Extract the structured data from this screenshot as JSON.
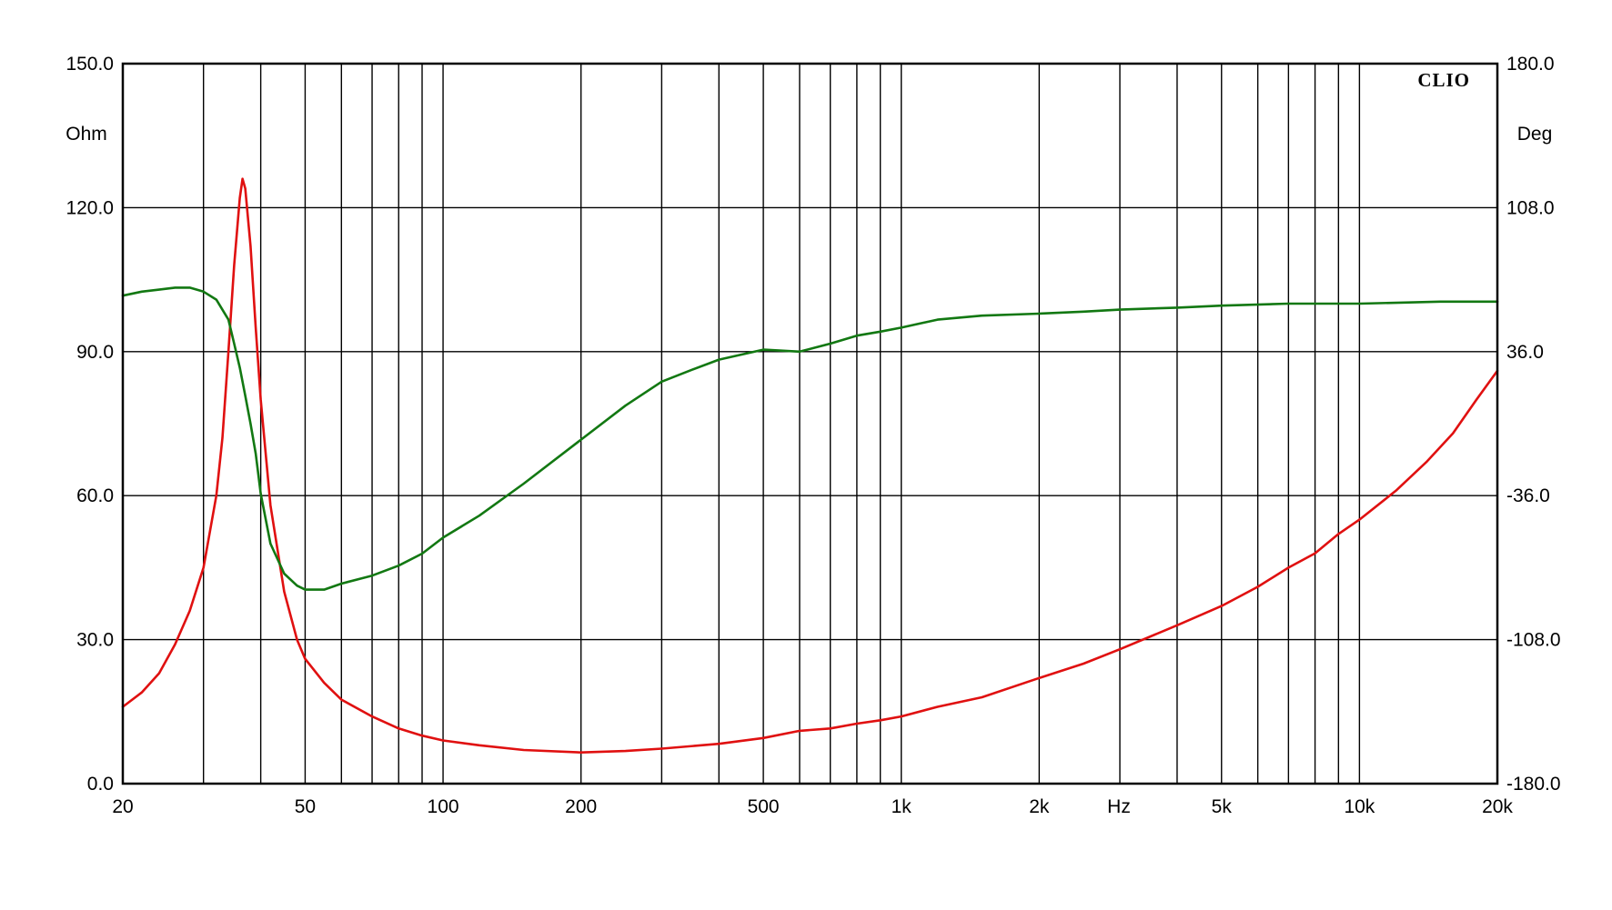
{
  "chart_data": {
    "type": "line",
    "brand": "CLIO",
    "left_unit": "Ohm",
    "right_unit": "Deg",
    "x_unit": "Hz",
    "x_scale": "log",
    "xlim": [
      20,
      20000
    ],
    "ylim_left": [
      0,
      150
    ],
    "ylim_right": [
      -180,
      180
    ],
    "grid": true,
    "colors": {
      "magnitude": "#e01010",
      "phase": "#127812",
      "grid": "#000000"
    },
    "x_ticks": [
      {
        "value": 20,
        "label": "20"
      },
      {
        "value": 50,
        "label": "50"
      },
      {
        "value": 100,
        "label": "100"
      },
      {
        "value": 200,
        "label": "200"
      },
      {
        "value": 500,
        "label": "500"
      },
      {
        "value": 1000,
        "label": "1k"
      },
      {
        "value": 2000,
        "label": "2k"
      },
      {
        "value": 5000,
        "label": "5k"
      },
      {
        "value": 10000,
        "label": "10k"
      },
      {
        "value": 20000,
        "label": "20k"
      }
    ],
    "x_gridlines": [
      20,
      30,
      40,
      50,
      60,
      70,
      80,
      90,
      100,
      200,
      300,
      400,
      500,
      600,
      700,
      800,
      900,
      1000,
      2000,
      3000,
      4000,
      5000,
      6000,
      7000,
      8000,
      9000,
      10000,
      20000
    ],
    "y_left_ticks": [
      {
        "value": 0,
        "label": "0.0"
      },
      {
        "value": 30,
        "label": "30.0"
      },
      {
        "value": 60,
        "label": "60.0"
      },
      {
        "value": 90,
        "label": "90.0"
      },
      {
        "value": 120,
        "label": "120.0"
      },
      {
        "value": 150,
        "label": "150.0"
      }
    ],
    "y_right_ticks": [
      {
        "value": -180,
        "label": "-180.0"
      },
      {
        "value": -108,
        "label": "-108.0"
      },
      {
        "value": -36,
        "label": "-36.0"
      },
      {
        "value": 36,
        "label": "36.0"
      },
      {
        "value": 108,
        "label": "108.0"
      },
      {
        "value": 180,
        "label": "180.0"
      }
    ],
    "series": [
      {
        "key": "magnitude",
        "axis": "left",
        "points": [
          [
            20,
            16
          ],
          [
            22,
            19
          ],
          [
            24,
            23
          ],
          [
            26,
            29
          ],
          [
            28,
            36
          ],
          [
            30,
            45
          ],
          [
            32,
            60
          ],
          [
            33,
            72
          ],
          [
            34,
            90
          ],
          [
            35,
            108
          ],
          [
            36,
            122
          ],
          [
            36.5,
            126
          ],
          [
            37,
            124
          ],
          [
            38,
            112
          ],
          [
            39,
            95
          ],
          [
            40,
            80
          ],
          [
            42,
            58
          ],
          [
            45,
            40
          ],
          [
            48,
            30
          ],
          [
            50,
            26
          ],
          [
            55,
            21
          ],
          [
            60,
            17.5
          ],
          [
            70,
            14
          ],
          [
            80,
            11.5
          ],
          [
            90,
            10
          ],
          [
            100,
            9
          ],
          [
            120,
            8
          ],
          [
            150,
            7
          ],
          [
            200,
            6.5
          ],
          [
            250,
            6.8
          ],
          [
            300,
            7.3
          ],
          [
            400,
            8.3
          ],
          [
            500,
            9.5
          ],
          [
            600,
            11
          ],
          [
            700,
            11.5
          ],
          [
            800,
            12.5
          ],
          [
            900,
            13.2
          ],
          [
            1000,
            14
          ],
          [
            1200,
            16
          ],
          [
            1500,
            18
          ],
          [
            2000,
            22
          ],
          [
            2500,
            25
          ],
          [
            3000,
            28
          ],
          [
            4000,
            33
          ],
          [
            5000,
            37
          ],
          [
            6000,
            41
          ],
          [
            7000,
            45
          ],
          [
            8000,
            48
          ],
          [
            9000,
            52
          ],
          [
            10000,
            55
          ],
          [
            12000,
            61
          ],
          [
            14000,
            67
          ],
          [
            16000,
            73
          ],
          [
            18000,
            80
          ],
          [
            20000,
            86
          ]
        ]
      },
      {
        "key": "phase",
        "axis": "right",
        "points": [
          [
            20,
            64
          ],
          [
            22,
            66
          ],
          [
            24,
            67
          ],
          [
            26,
            68
          ],
          [
            28,
            68
          ],
          [
            30,
            66
          ],
          [
            32,
            62
          ],
          [
            34,
            52
          ],
          [
            35,
            40
          ],
          [
            36,
            28
          ],
          [
            37,
            14
          ],
          [
            38,
            0
          ],
          [
            39,
            -15
          ],
          [
            40,
            -35
          ],
          [
            42,
            -60
          ],
          [
            45,
            -75
          ],
          [
            48,
            -81
          ],
          [
            50,
            -83
          ],
          [
            55,
            -83
          ],
          [
            60,
            -80
          ],
          [
            70,
            -76
          ],
          [
            80,
            -71
          ],
          [
            90,
            -65
          ],
          [
            100,
            -57
          ],
          [
            120,
            -46
          ],
          [
            150,
            -30
          ],
          [
            200,
            -8
          ],
          [
            250,
            9
          ],
          [
            300,
            21
          ],
          [
            350,
            27
          ],
          [
            400,
            32
          ],
          [
            500,
            37
          ],
          [
            600,
            36
          ],
          [
            700,
            40
          ],
          [
            800,
            44
          ],
          [
            900,
            46
          ],
          [
            1000,
            48
          ],
          [
            1200,
            52
          ],
          [
            1500,
            54
          ],
          [
            2000,
            55
          ],
          [
            2500,
            56
          ],
          [
            3000,
            57
          ],
          [
            4000,
            58
          ],
          [
            5000,
            59
          ],
          [
            7000,
            60
          ],
          [
            10000,
            60
          ],
          [
            15000,
            61
          ],
          [
            20000,
            61
          ]
        ]
      }
    ]
  }
}
